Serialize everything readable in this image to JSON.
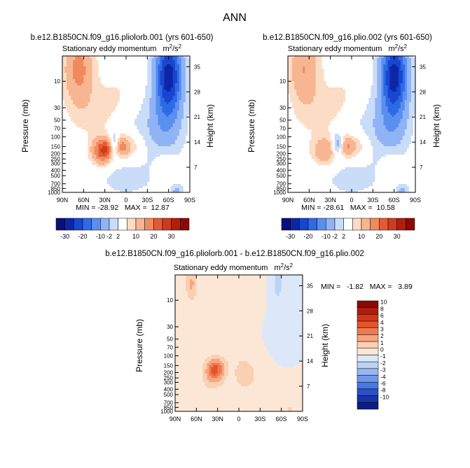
{
  "figure_title": "ANN",
  "chart_data": [
    {
      "type": "heatmap",
      "case": "b.e12.B1850CN.f09_g16.pliolorb.001 (yrs 601-650)",
      "title": "Stationary eddy momentum",
      "units": "m²/s²",
      "units_base": "m",
      "units_sup": "2",
      "units_mid": "/s",
      "ylabel": "Pressure (mb)",
      "y2label": "Height (km)",
      "x_ticks": [
        "90N",
        "60N",
        "30N",
        "0",
        "30S",
        "60S",
        "90S"
      ],
      "x_values": [
        90,
        60,
        30,
        0,
        -30,
        -60,
        -90
      ],
      "p_ticks": [
        "10",
        "30",
        "50",
        "70",
        "100",
        "150",
        "200",
        "250",
        "300",
        "400",
        "500",
        "700",
        "850",
        "1000"
      ],
      "p_values": [
        10,
        30,
        50,
        70,
        100,
        150,
        200,
        250,
        300,
        400,
        500,
        700,
        850,
        1000
      ],
      "h_ticks": [
        "35",
        "28",
        "21",
        "14",
        "7"
      ],
      "h_values": [
        35,
        28,
        21,
        14,
        7
      ],
      "stats": "MIN = -28.92   MAX =  12.87",
      "min": -28.92,
      "max": 12.87,
      "levels": [
        -30,
        -25,
        -20,
        -15,
        -10,
        -5,
        -2,
        2,
        5,
        10,
        15,
        20,
        25,
        30
      ],
      "features": [
        {
          "lat": 67,
          "p": 6,
          "amp": 12,
          "slat": 14,
          "sz": 1.05
        },
        {
          "lat": 42,
          "p": 40,
          "amp": 3,
          "slat": 22,
          "sz": 0.75
        },
        {
          "lat": 34,
          "p": 180,
          "amp": 18,
          "slat": 10,
          "sz": 0.38
        },
        {
          "lat": 27,
          "p": 160,
          "amp": 8,
          "slat": 6,
          "sz": 0.25
        },
        {
          "lat": 6,
          "p": 150,
          "amp": 12,
          "slat": 8,
          "sz": 0.3
        },
        {
          "lat": -10,
          "p": 150,
          "amp": 4,
          "slat": 12,
          "sz": 0.4
        },
        {
          "lat": 17,
          "p": 140,
          "amp": -10,
          "slat": 5,
          "sz": 0.32
        },
        {
          "lat": -60,
          "p": 8,
          "amp": -28,
          "slat": 13,
          "sz": 1.1
        },
        {
          "lat": -55,
          "p": 70,
          "amp": -6,
          "slat": 18,
          "sz": 0.9
        },
        {
          "lat": -15,
          "p": 60,
          "amp": -2.5,
          "slat": 35,
          "sz": 1.0
        },
        {
          "lat": 0,
          "p": 600,
          "amp": -2.5,
          "slat": 40,
          "sz": 0.7
        },
        {
          "lat": -55,
          "p": 300,
          "amp": 3,
          "slat": 10,
          "sz": 0.5
        },
        {
          "lat": -72,
          "p": 950,
          "amp": -6,
          "slat": 6,
          "sz": 0.2
        },
        {
          "lat": 10,
          "p": 20,
          "amp": 2.5,
          "slat": 20,
          "sz": 0.8
        }
      ]
    },
    {
      "type": "heatmap",
      "case": "b.e12.B1850CN.f09_g16.plio.002 (yrs 601-650)",
      "title": "Stationary eddy momentum",
      "units": "m²/s²",
      "units_base": "m",
      "units_sup": "2",
      "units_mid": "/s",
      "ylabel": "Pressure (mb)",
      "y2label": "Height (km)",
      "x_ticks": [
        "90N",
        "60N",
        "30N",
        "0",
        "30S",
        "60S",
        "90S"
      ],
      "x_values": [
        90,
        60,
        30,
        0,
        -30,
        -60,
        -90
      ],
      "p_ticks": [
        "10",
        "30",
        "50",
        "70",
        "100",
        "150",
        "200",
        "250",
        "300",
        "400",
        "500",
        "700",
        "850",
        "1000"
      ],
      "p_values": [
        10,
        30,
        50,
        70,
        100,
        150,
        200,
        250,
        300,
        400,
        500,
        700,
        850,
        1000
      ],
      "h_ticks": [
        "35",
        "28",
        "21",
        "14",
        "7"
      ],
      "h_values": [
        35,
        28,
        21,
        14,
        7
      ],
      "stats": "MIN = -28.61   MAX =  10.58",
      "min": -28.61,
      "max": 10.58,
      "levels": [
        -30,
        -25,
        -20,
        -15,
        -10,
        -5,
        -2,
        2,
        5,
        10,
        15,
        20,
        25,
        30
      ],
      "features": [
        {
          "lat": 67,
          "p": 6,
          "amp": 10,
          "slat": 14,
          "sz": 1.05
        },
        {
          "lat": 42,
          "p": 40,
          "amp": 3,
          "slat": 22,
          "sz": 0.75
        },
        {
          "lat": 38,
          "p": 180,
          "amp": 10,
          "slat": 12,
          "sz": 0.4
        },
        {
          "lat": 6,
          "p": 150,
          "amp": 10,
          "slat": 8,
          "sz": 0.3
        },
        {
          "lat": -10,
          "p": 150,
          "amp": 4,
          "slat": 12,
          "sz": 0.4
        },
        {
          "lat": 20,
          "p": 140,
          "amp": -10,
          "slat": 5,
          "sz": 0.32
        },
        {
          "lat": -60,
          "p": 8,
          "amp": -28,
          "slat": 13,
          "sz": 1.1
        },
        {
          "lat": -55,
          "p": 70,
          "amp": -6,
          "slat": 18,
          "sz": 0.9
        },
        {
          "lat": -15,
          "p": 60,
          "amp": -2.5,
          "slat": 35,
          "sz": 1.0
        },
        {
          "lat": 0,
          "p": 600,
          "amp": -2.5,
          "slat": 40,
          "sz": 0.7
        },
        {
          "lat": -55,
          "p": 300,
          "amp": 3,
          "slat": 10,
          "sz": 0.5
        },
        {
          "lat": -72,
          "p": 950,
          "amp": -6,
          "slat": 6,
          "sz": 0.2
        },
        {
          "lat": 10,
          "p": 20,
          "amp": 2.5,
          "slat": 20,
          "sz": 0.8
        }
      ]
    },
    {
      "type": "heatmap",
      "case": "b.e12.B1850CN.f09_g16.pliolorb.001 - b.e12.B1850CN.f09_g16.plio.002",
      "title": "Stationary eddy momentum",
      "units": "m²/s²",
      "units_base": "m",
      "units_sup": "2",
      "units_mid": "/s",
      "ylabel": "Pressure (mb)",
      "y2label": "Height (km)",
      "x_ticks": [
        "90N",
        "60N",
        "30N",
        "0",
        "30S",
        "60S",
        "90S"
      ],
      "x_values": [
        90,
        60,
        30,
        0,
        -30,
        -60,
        -90
      ],
      "p_ticks": [
        "10",
        "30",
        "50",
        "70",
        "100",
        "150",
        "200",
        "250",
        "300",
        "400",
        "500",
        "700",
        "850",
        "1000"
      ],
      "p_values": [
        10,
        30,
        50,
        70,
        100,
        150,
        200,
        250,
        300,
        400,
        500,
        700,
        850,
        1000
      ],
      "h_ticks": [
        "35",
        "28",
        "21",
        "14",
        "7"
      ],
      "h_values": [
        35,
        28,
        21,
        14,
        7
      ],
      "stats": "MIN =   -1.82   MAX =   3.89",
      "min": -1.82,
      "max": 3.89,
      "levels": [
        -10,
        -8,
        -6,
        -4,
        -3,
        -2,
        -1,
        0,
        1,
        2,
        3,
        4,
        6,
        8,
        10
      ],
      "features": [
        {
          "lat": 67,
          "p": 5,
          "amp": 2.2,
          "slat": 6,
          "sz": 0.5
        },
        {
          "lat": 50,
          "p": 25,
          "amp": 0.6,
          "slat": 12,
          "sz": 0.7
        },
        {
          "lat": 34,
          "p": 180,
          "amp": 3.9,
          "slat": 9,
          "sz": 0.35
        },
        {
          "lat": 40,
          "p": 300,
          "amp": 0.8,
          "slat": 16,
          "sz": 0.6
        },
        {
          "lat": 22,
          "p": 150,
          "amp": 0.8,
          "slat": 6,
          "sz": 0.2
        },
        {
          "lat": -5,
          "p": 200,
          "amp": 1.2,
          "slat": 10,
          "sz": 0.5
        },
        {
          "lat": -30,
          "p": 250,
          "amp": 0.8,
          "slat": 20,
          "sz": 0.8
        },
        {
          "lat": -55,
          "p": 5,
          "amp": -1.8,
          "slat": 5,
          "sz": 0.45
        },
        {
          "lat": -55,
          "p": 60,
          "amp": -0.6,
          "slat": 12,
          "sz": 0.7
        },
        {
          "lat": 10,
          "p": 20,
          "amp": 0.6,
          "slat": 20,
          "sz": 0.8
        },
        {
          "lat": -72,
          "p": 950,
          "amp": 1.2,
          "slat": 5,
          "sz": 0.2
        }
      ]
    }
  ],
  "colorbar_top": {
    "labels": [
      "-30",
      "-20",
      "-10",
      "-2",
      "2",
      "10",
      "20",
      "30"
    ],
    "colors": [
      "#0a0f7a",
      "#0d26a8",
      "#1846cf",
      "#2f6ae6",
      "#5a8ff0",
      "#8fb3f5",
      "#c9dcf8",
      "#ffffff",
      "#fcdcc4",
      "#f7b591",
      "#f08a5e",
      "#e55a36",
      "#d13a1d",
      "#b01f0e",
      "#8b0a06"
    ]
  },
  "colorbar_diff": {
    "labels": [
      "10",
      "8",
      "6",
      "4",
      "3",
      "2",
      "1",
      "0",
      "-1",
      "-2",
      "-3",
      "-4",
      "-6",
      "-8",
      "-10"
    ],
    "colors": [
      "#8b0a06",
      "#b41c0a",
      "#d1361a",
      "#e4532e",
      "#ef7a4e",
      "#f6a57e",
      "#fbcfb2",
      "#fce7d6",
      "#dce8f9",
      "#bcd3f6",
      "#96b7f1",
      "#6f98ea",
      "#4a77df",
      "#2a52c8",
      "#1733a8",
      "#0b1e85"
    ]
  }
}
